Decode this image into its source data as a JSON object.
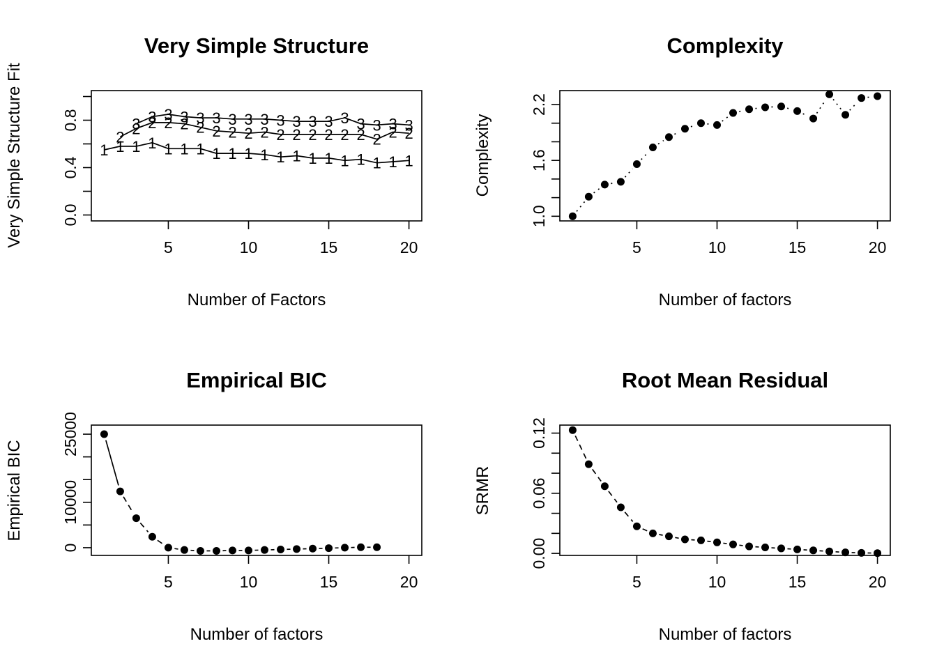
{
  "chart_data": [
    {
      "id": "vss",
      "type": "line",
      "title": "Very Simple Structure",
      "xlabel": "Number of Factors",
      "ylabel": "Very Simple Structure Fit",
      "xlim": [
        0.2,
        20.8
      ],
      "ylim": [
        -0.05,
        1.05
      ],
      "xticks": [
        5,
        10,
        15,
        20
      ],
      "yticks": [
        0.0,
        0.4,
        0.8
      ],
      "ytick_labels": [
        "0.0",
        "0.4",
        "0.8"
      ],
      "yminor": [
        0.2,
        0.6,
        1.0
      ],
      "series": [
        {
          "name": "1",
          "marker": "1",
          "x": [
            1,
            2,
            3,
            4,
            5,
            6,
            7,
            8,
            9,
            10,
            11,
            12,
            13,
            14,
            15,
            16,
            17,
            18,
            19,
            20
          ],
          "values": [
            0.55,
            0.58,
            0.58,
            0.61,
            0.56,
            0.56,
            0.56,
            0.52,
            0.52,
            0.52,
            0.51,
            0.49,
            0.5,
            0.48,
            0.48,
            0.46,
            0.47,
            0.44,
            0.45,
            0.46
          ]
        },
        {
          "name": "2",
          "marker": "2",
          "x": [
            2,
            3,
            4,
            5,
            6,
            7,
            8,
            9,
            10,
            11,
            12,
            13,
            14,
            15,
            16,
            17,
            18,
            19,
            20
          ],
          "values": [
            0.66,
            0.73,
            0.78,
            0.78,
            0.77,
            0.74,
            0.71,
            0.7,
            0.69,
            0.7,
            0.68,
            0.68,
            0.68,
            0.68,
            0.68,
            0.68,
            0.64,
            0.7,
            0.69
          ]
        },
        {
          "name": "3",
          "marker": "3",
          "x": [
            3,
            4,
            5,
            6,
            7,
            8,
            9,
            10,
            11,
            12,
            13,
            14,
            15,
            16,
            17,
            18,
            19,
            20
          ],
          "values": [
            0.77,
            0.83,
            0.85,
            0.83,
            0.82,
            0.82,
            0.81,
            0.81,
            0.81,
            0.8,
            0.79,
            0.79,
            0.79,
            0.82,
            0.77,
            0.76,
            0.77,
            0.76
          ]
        }
      ]
    },
    {
      "id": "complexity",
      "type": "line",
      "title": "Complexity",
      "xlabel": "Number of factors",
      "ylabel": "Complexity",
      "line_style": "dotted",
      "xlim": [
        0.2,
        20.8
      ],
      "ylim": [
        0.95,
        2.35
      ],
      "xticks": [
        5,
        10,
        15,
        20
      ],
      "yticks": [
        1.0,
        1.6,
        2.2
      ],
      "ytick_labels": [
        "1.0",
        "1.6",
        "2.2"
      ],
      "yminor": [
        1.2,
        1.4,
        1.8,
        2.0
      ],
      "series": [
        {
          "x": [
            1,
            2,
            3,
            4,
            5,
            6,
            7,
            8,
            9,
            10,
            11,
            12,
            13,
            14,
            15,
            16,
            17,
            18,
            19,
            20
          ],
          "values": [
            1.0,
            1.21,
            1.34,
            1.37,
            1.56,
            1.74,
            1.85,
            1.94,
            2.0,
            1.98,
            2.11,
            2.15,
            2.17,
            2.18,
            2.13,
            2.05,
            2.31,
            2.09,
            2.27,
            2.29
          ]
        }
      ]
    },
    {
      "id": "ebic",
      "type": "line",
      "title": "Empirical BIC",
      "xlabel": "Number of factors",
      "ylabel": "Empirical BIC",
      "line_style": "solid-then-dashed",
      "xlim": [
        0.2,
        20.8
      ],
      "ylim": [
        -1700,
        27000
      ],
      "xticks": [
        5,
        10,
        15,
        20
      ],
      "yticks": [
        0,
        10000,
        25000
      ],
      "ytick_labels": [
        "0",
        "10000",
        "25000"
      ],
      "yminor": [
        5000,
        15000,
        20000
      ],
      "series": [
        {
          "x": [
            1,
            2,
            3,
            4,
            5,
            6,
            7,
            8,
            9,
            10,
            11,
            12,
            13,
            14,
            15,
            16,
            17,
            18
          ],
          "values": [
            25000,
            12400,
            6500,
            2400,
            0,
            -500,
            -700,
            -700,
            -600,
            -600,
            -500,
            -400,
            -300,
            -200,
            -100,
            0,
            100,
            100
          ]
        }
      ]
    },
    {
      "id": "srmr",
      "type": "line",
      "title": "Root Mean Residual",
      "xlabel": "Number of factors",
      "ylabel": "SRMR",
      "line_style": "dashed",
      "xlim": [
        0.2,
        20.8
      ],
      "ylim": [
        -0.002,
        0.128
      ],
      "xticks": [
        5,
        10,
        15,
        20
      ],
      "yticks": [
        0.0,
        0.06,
        0.12
      ],
      "ytick_labels": [
        "0.00",
        "0.06",
        "0.12"
      ],
      "yminor": [
        0.02,
        0.04,
        0.08,
        0.1
      ],
      "series": [
        {
          "x": [
            1,
            2,
            3,
            4,
            5,
            6,
            7,
            8,
            9,
            10,
            11,
            12,
            13,
            14,
            15,
            16,
            17,
            18,
            19,
            20
          ],
          "values": [
            0.123,
            0.089,
            0.067,
            0.046,
            0.027,
            0.02,
            0.017,
            0.014,
            0.013,
            0.011,
            0.009,
            0.007,
            0.006,
            0.005,
            0.004,
            0.003,
            0.002,
            0.001,
            0.0005,
            0.0003
          ]
        }
      ]
    }
  ]
}
